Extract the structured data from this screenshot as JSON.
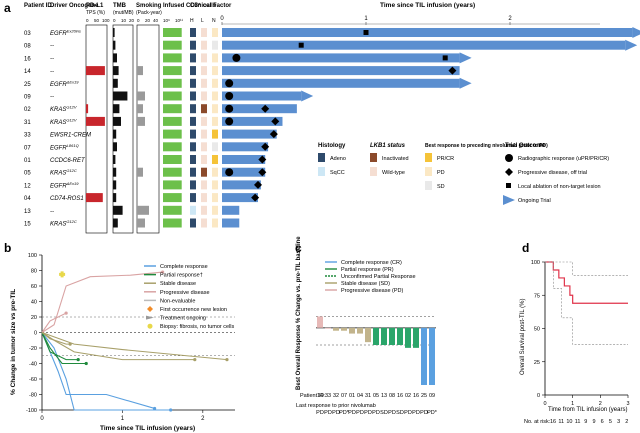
{
  "panels": {
    "a": "a",
    "b": "b",
    "c": "c",
    "d": "d"
  },
  "panel_a": {
    "headers": {
      "patient_id": "Patient ID",
      "driver_oncogene": "Driver Oncogene",
      "pdl1": "PD-L1",
      "pdl1_sub": "TPS (%)",
      "tmb": "TMB",
      "tmb_sub": "(mut/MB)",
      "smoking": "Smoking",
      "smoking_sub": "(Pack-year)",
      "infused": "Infused CD3⁺ cells",
      "clinical": "Clinical Factor",
      "h": "H",
      "l": "L",
      "n": "N",
      "time": "Time since TIL infusion (years)"
    },
    "pdl1_ticks": [
      "0",
      "50",
      "100"
    ],
    "tmb_ticks": [
      "0",
      "10",
      "20"
    ],
    "smoking_ticks": [
      "0",
      "20",
      "40"
    ],
    "infused_ticks": [
      "10⁹",
      "10¹¹"
    ],
    "time_ticks": [
      "0",
      "1",
      "2"
    ],
    "patients": [
      {
        "id": "03",
        "onc": "EGFR",
        "sup": "Ex20ins",
        "pdl1": 0,
        "tmb": 2,
        "smk": 0,
        "inf": 0.85,
        "hist": "Adeno",
        "lkb1": "Wild-type",
        "bor": "PD",
        "dur": 2.85,
        "ongoing": true,
        "ev": [
          {
            "t": 1.0,
            "k": "ablation"
          }
        ]
      },
      {
        "id": "08",
        "onc": "--",
        "sup": "",
        "pdl1": 0,
        "tmb": 3,
        "smk": 0,
        "inf": 0.85,
        "hist": "Adeno",
        "lkb1": "Wild-type",
        "bor": "SD",
        "dur": 2.8,
        "ongoing": true,
        "ev": [
          {
            "t": 0.55,
            "k": "ablation"
          }
        ]
      },
      {
        "id": "16",
        "onc": "--",
        "sup": "",
        "pdl1": 0,
        "tmb": 5,
        "smk": 0,
        "inf": 0.85,
        "hist": "Adeno",
        "lkb1": "Wild-type",
        "bor": "PD",
        "dur": 1.65,
        "ongoing": true,
        "ev": [
          {
            "t": 0.1,
            "k": "response"
          },
          {
            "t": 1.55,
            "k": "ablation"
          }
        ]
      },
      {
        "id": "14",
        "onc": "--",
        "sup": "",
        "pdl1": 90,
        "tmb": 7,
        "smk": 15,
        "inf": 0.85,
        "hist": "Adeno",
        "lkb1": "Wild-type",
        "bor": "PD",
        "dur": 1.65,
        "ongoing": false,
        "ev": [
          {
            "t": 1.6,
            "k": "progression"
          }
        ]
      },
      {
        "id": "25",
        "onc": "EGFR",
        "sup": "ΔEx19",
        "pdl1": 0,
        "tmb": 6,
        "smk": 0,
        "inf": 0.85,
        "hist": "Adeno",
        "lkb1": "Wild-type",
        "bor": "PD",
        "dur": 1.65,
        "ongoing": true,
        "ev": [
          {
            "t": 0.05,
            "k": "response"
          }
        ]
      },
      {
        "id": "09",
        "onc": "--",
        "sup": "",
        "pdl1": 0,
        "tmb": 18,
        "smk": 20,
        "inf": 0.85,
        "hist": "Adeno",
        "lkb1": "Wild-type",
        "bor": "PD",
        "dur": 0.55,
        "ongoing": true,
        "ev": [
          {
            "t": 0.05,
            "k": "response"
          }
        ]
      },
      {
        "id": "02",
        "onc": "KRAS",
        "sup": "G12V",
        "pdl1": 10,
        "tmb": 8,
        "smk": 15,
        "inf": 0.85,
        "hist": "Adeno",
        "lkb1": "Inactivated",
        "bor": "PD",
        "dur": 0.52,
        "ongoing": false,
        "ev": [
          {
            "t": 0.05,
            "k": "response"
          },
          {
            "t": 0.3,
            "k": "progression"
          }
        ]
      },
      {
        "id": "31",
        "onc": "KRAS",
        "sup": "G12V",
        "pdl1": 90,
        "tmb": 10,
        "smk": 20,
        "inf": 0.85,
        "hist": "Adeno",
        "lkb1": "Wild-type",
        "bor": "PD",
        "dur": 0.42,
        "ongoing": false,
        "ev": [
          {
            "t": 0.05,
            "k": "response"
          },
          {
            "t": 0.37,
            "k": "progression"
          }
        ]
      },
      {
        "id": "33",
        "onc": "EWSR1-CREM",
        "sup": "",
        "pdl1": 0,
        "tmb": 4,
        "smk": 0,
        "inf": 0.85,
        "hist": "Adeno",
        "lkb1": "Wild-type",
        "bor": "PR/CR",
        "dur": 0.38,
        "ongoing": false,
        "ev": [
          {
            "t": 0.36,
            "k": "progression"
          }
        ]
      },
      {
        "id": "07",
        "onc": "EGFR",
        "sup": "L861Q",
        "pdl1": 0,
        "tmb": 5,
        "smk": 0,
        "inf": 0.85,
        "hist": "Adeno",
        "lkb1": "Wild-type",
        "bor": "SD",
        "dur": 0.32,
        "ongoing": false,
        "ev": [
          {
            "t": 0.3,
            "k": "progression"
          }
        ]
      },
      {
        "id": "01",
        "onc": "CCDC6-RET",
        "sup": "",
        "pdl1": 0,
        "tmb": 3,
        "smk": 0,
        "inf": 0.85,
        "hist": "Adeno",
        "lkb1": "Wild-type",
        "bor": "PR/CR",
        "dur": 0.3,
        "ongoing": false,
        "ev": [
          {
            "t": 0.28,
            "k": "progression"
          }
        ]
      },
      {
        "id": "05",
        "onc": "KRAS",
        "sup": "G12C",
        "pdl1": 0,
        "tmb": 4,
        "smk": 15,
        "inf": 0.85,
        "hist": "Adeno",
        "lkb1": "Inactivated",
        "bor": "PD",
        "dur": 0.3,
        "ongoing": false,
        "ev": [
          {
            "t": 0.05,
            "k": "response"
          },
          {
            "t": 0.28,
            "k": "progression"
          }
        ]
      },
      {
        "id": "12",
        "onc": "EGFR",
        "sup": "ΔEx19",
        "pdl1": 0,
        "tmb": 4,
        "smk": 0,
        "inf": 0.85,
        "hist": "Adeno",
        "lkb1": "Wild-type",
        "bor": "PD",
        "dur": 0.27,
        "ongoing": false,
        "ev": [
          {
            "t": 0.25,
            "k": "progression"
          }
        ]
      },
      {
        "id": "04",
        "onc": "CD74-ROS1",
        "sup": "",
        "pdl1": 80,
        "tmb": 4,
        "smk": 0,
        "inf": 0.85,
        "hist": "Adeno",
        "lkb1": "Wild-type",
        "bor": "PD",
        "dur": 0.25,
        "ongoing": false,
        "ev": [
          {
            "t": 0.23,
            "k": "progression"
          }
        ]
      },
      {
        "id": "13",
        "onc": "--",
        "sup": "",
        "pdl1": 0,
        "tmb": 12,
        "smk": 30,
        "inf": 0.85,
        "hist": "SqCC",
        "lkb1": "Wild-type",
        "bor": "PD",
        "dur": 0.12,
        "ongoing": false,
        "ev": []
      },
      {
        "id": "15",
        "onc": "KRAS",
        "sup": "G12C",
        "pdl1": 0,
        "tmb": 6,
        "smk": 20,
        "inf": 0.85,
        "hist": "Adeno",
        "lkb1": "Wild-type",
        "bor": "PD",
        "dur": 0.12,
        "ongoing": false,
        "ev": []
      }
    ],
    "legend": {
      "histology_title": "Histology",
      "adeno": "Adeno",
      "sqcc": "SqCC",
      "lkb1_title": "LKB1 status",
      "inactivated": "Inactivated",
      "wildtype": "Wild-type",
      "bor_title": "Best response to preceding nivolumab (prior to PD)",
      "prcr": "PR/CR",
      "pd": "PD",
      "sd": "SD",
      "outcome_title": "Trial Outcome",
      "outcome_response": "Radiographic response (uPR/PR/CR)",
      "outcome_progression": "Progressive disease, off trial",
      "outcome_ablation": "Local ablation of non-target lesion",
      "outcome_ongoing": "Ongoing Trial"
    },
    "colors": {
      "bar": "#5b8fd0",
      "pdl1": "#c8262c",
      "tmb": "#111111",
      "smoking": "#9a9a9a",
      "infused": "#6cc04a",
      "adeno": "#2e4a6b",
      "sqcc": "#cde7f5",
      "inactivated": "#8b4a2b",
      "wildtype": "#f5ded2",
      "prcr": "#f5c338",
      "pd": "#fbe8c4",
      "sd": "#e9e9e9"
    }
  },
  "panel_b": {
    "ylabel": "% Change in tumor size vs pre-TIL",
    "xlabel": "Time since TIL infusion (years)",
    "x_ticks": [
      "0",
      "1",
      "2"
    ],
    "y_ticks": [
      "-100",
      "-80",
      "-60",
      "-40",
      "-20",
      "0",
      "20",
      "40",
      "60",
      "80",
      "100"
    ],
    "legend": [
      "Complete response",
      "Partial response†",
      "Stable disease",
      "Progressive disease",
      "Non-evaluable",
      "First occurrence new lesion",
      "Treatment ongoing",
      "Biopsy: fibrosis, no tumor cells"
    ]
  },
  "panel_c": {
    "ylabel": "Best Overall Response % Change vs. pre-TIL baseline",
    "legend": [
      "Complete response (CR)",
      "Partial response (PR)",
      "Unconfirmed Partial Response",
      "Stable disease (SD)",
      "Progressive disease (PD)"
    ],
    "patient_label": "Patient ID:",
    "response_label": "Last response to prior nivolumab",
    "patients": [
      "14",
      "33",
      "32",
      "07",
      "01",
      "04",
      "31",
      "05",
      "13",
      "08",
      "16",
      "02",
      "16",
      "25",
      "09"
    ],
    "responses": [
      "PD",
      "PD",
      "PD",
      "PD*",
      "PD",
      "PD",
      "PD",
      "PD",
      "SD",
      "PD",
      "SD",
      "PD",
      "PD",
      "PD",
      "PD*"
    ]
  },
  "panel_d": {
    "ylabel": "Overall Survival post-TIL (%)",
    "xlabel": "Time from TIL infusion (years)",
    "x_ticks": [
      "0",
      "1",
      "2",
      "3"
    ],
    "y_ticks": [
      "0",
      "25",
      "50",
      "75",
      "100"
    ],
    "at_risk_label": "No. at risk:",
    "at_risk": [
      "16",
      "11",
      "10",
      "11",
      "9",
      "9",
      "6",
      "5",
      "3",
      "2"
    ]
  },
  "chart_data": [
    {
      "type": "bar",
      "panel": "a",
      "title": "",
      "xlabel": "Time since TIL infusion (years)",
      "categories": [
        "03",
        "08",
        "16",
        "14",
        "25",
        "09",
        "02",
        "31",
        "33",
        "07",
        "01",
        "05",
        "12",
        "04",
        "13",
        "15"
      ],
      "values": [
        2.85,
        2.8,
        1.65,
        1.65,
        1.65,
        0.55,
        0.52,
        0.42,
        0.38,
        0.32,
        0.3,
        0.3,
        0.27,
        0.25,
        0.12,
        0.12
      ],
      "xlim": [
        0,
        3
      ],
      "grid": false
    },
    {
      "type": "line",
      "panel": "b",
      "xlabel": "Time since TIL infusion (years)",
      "ylabel": "% Change in tumor size vs pre-TIL",
      "xlim": [
        0,
        2.4
      ],
      "ylim": [
        -100,
        100
      ],
      "series": [
        {
          "name": "Complete response",
          "points": [
            [
              0,
              0
            ],
            [
              0.15,
              -20
            ],
            [
              0.3,
              -60
            ],
            [
              0.4,
              -100
            ],
            [
              1.0,
              -100
            ],
            [
              1.6,
              -100
            ]
          ]
        },
        {
          "name": "Complete response",
          "points": [
            [
              0,
              0
            ],
            [
              0.2,
              -50
            ],
            [
              0.3,
              -80
            ],
            [
              0.8,
              -80
            ],
            [
              1.4,
              -98
            ]
          ]
        },
        {
          "name": "Partial response†",
          "points": [
            [
              0,
              0
            ],
            [
              0.1,
              -25
            ],
            [
              0.3,
              -35
            ],
            [
              0.45,
              -35
            ]
          ]
        },
        {
          "name": "Partial response†",
          "points": [
            [
              0,
              0
            ],
            [
              0.1,
              -20
            ],
            [
              0.25,
              -40
            ],
            [
              0.55,
              -40
            ]
          ]
        },
        {
          "name": "Stable disease",
          "points": [
            [
              0,
              0
            ],
            [
              0.15,
              -10
            ],
            [
              0.4,
              -25
            ],
            [
              1.0,
              -35
            ],
            [
              1.9,
              -35
            ]
          ]
        },
        {
          "name": "Stable disease",
          "points": [
            [
              0,
              0
            ],
            [
              0.1,
              -8
            ],
            [
              0.3,
              -15
            ],
            [
              0.35,
              -15
            ]
          ]
        },
        {
          "name": "Progressive disease",
          "points": [
            [
              0,
              0
            ],
            [
              0.15,
              10
            ],
            [
              0.3,
              60
            ],
            [
              0.6,
              72
            ],
            [
              1.1,
              74
            ],
            [
              1.5,
              78
            ]
          ]
        },
        {
          "name": "Progressive disease",
          "points": [
            [
              0,
              0
            ],
            [
              0.1,
              15
            ],
            [
              0.3,
              25
            ]
          ]
        },
        {
          "name": "Stable disease",
          "points": [
            [
              0,
              0
            ],
            [
              0.4,
              -15
            ],
            [
              1.0,
              -22
            ],
            [
              2.3,
              -35
            ]
          ]
        }
      ]
    },
    {
      "type": "bar",
      "panel": "c",
      "ylabel": "Best Overall Response % Change vs. pre-TIL baseline",
      "categories": [
        "14",
        "33",
        "32",
        "07",
        "01",
        "04",
        "31",
        "05",
        "13",
        "08",
        "16",
        "02",
        "16",
        "25",
        "09"
      ],
      "values": [
        20,
        0,
        -5,
        -5,
        -10,
        -10,
        -25,
        -30,
        -30,
        -30,
        -30,
        -35,
        -35,
        -100,
        -100
      ],
      "ylim": [
        -100,
        40
      ],
      "grid": false
    },
    {
      "type": "line",
      "panel": "d",
      "xlabel": "Time from TIL infusion (years)",
      "ylabel": "Overall Survival post-TIL (%)",
      "xlim": [
        0,
        3
      ],
      "ylim": [
        0,
        100
      ],
      "series": [
        {
          "name": "",
          "points": [
            [
              0,
              100
            ],
            [
              0.3,
              94
            ],
            [
              0.5,
              88
            ],
            [
              0.7,
              82
            ],
            [
              0.9,
              75
            ],
            [
              1.0,
              69
            ],
            [
              3.0,
              69
            ]
          ]
        }
      ]
    }
  ]
}
